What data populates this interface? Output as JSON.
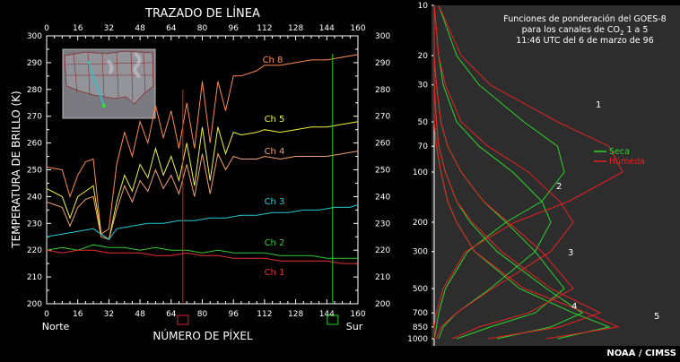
{
  "colors": {
    "ch1": "#e53030",
    "ch2": "#32c832",
    "ch3": "#22c8d2",
    "ch4": "#f0a070",
    "ch5": "#f0f03c",
    "ch8": "#ff8a50",
    "seca": "#2bd42b",
    "humeda": "#e62222",
    "cursor_red": "#e02020",
    "cursor_green": "#20d020",
    "panel": "#2d2d2d"
  },
  "chart_data": [
    {
      "type": "line",
      "title": "TRAZADO DE LÍNEA",
      "xlabel": "NÚMERO DE PÍXEL",
      "ylabel": "TEMPERATURA DE BRILLO (K)",
      "x_ticks": [
        "0",
        "16",
        "32",
        "48",
        "64",
        "80",
        "96",
        "112",
        "128",
        "144",
        "160"
      ],
      "y_ticks": [
        "300",
        "290",
        "280",
        "270",
        "260",
        "250",
        "240",
        "230",
        "220",
        "210",
        "200"
      ],
      "xlim": [
        0,
        160
      ],
      "ylim": [
        200,
        300
      ],
      "left_label": "Norte",
      "right_label": "Sur",
      "cursors": [
        {
          "x": 70,
          "color": "red"
        },
        {
          "x": 147,
          "color": "green"
        }
      ],
      "series": [
        {
          "name": "Ch 8",
          "x": [
            0,
            8,
            12,
            16,
            20,
            24,
            28,
            32,
            36,
            40,
            44,
            48,
            52,
            56,
            60,
            64,
            68,
            72,
            76,
            80,
            84,
            88,
            92,
            96,
            100,
            108,
            112,
            120,
            128,
            136,
            144,
            152,
            160
          ],
          "y": [
            251,
            250,
            240,
            248,
            253,
            254,
            226,
            228,
            252,
            264,
            255,
            268,
            260,
            274,
            262,
            272,
            258,
            275,
            258,
            283,
            260,
            283,
            272,
            285,
            285,
            287,
            289,
            289,
            290,
            291,
            291,
            292,
            293
          ]
        },
        {
          "name": "Ch 5",
          "x": [
            0,
            8,
            12,
            16,
            20,
            24,
            28,
            32,
            36,
            40,
            44,
            48,
            52,
            56,
            60,
            64,
            68,
            72,
            76,
            80,
            84,
            88,
            92,
            96,
            100,
            108,
            112,
            120,
            128,
            136,
            144,
            152,
            160
          ],
          "y": [
            243,
            240,
            232,
            240,
            242,
            244,
            226,
            224,
            238,
            248,
            242,
            252,
            247,
            258,
            248,
            255,
            246,
            260,
            244,
            266,
            246,
            266,
            256,
            264,
            263,
            264,
            265,
            264,
            265,
            266,
            266,
            267,
            268
          ]
        },
        {
          "name": "Ch 4",
          "x": [
            0,
            8,
            12,
            16,
            20,
            24,
            28,
            32,
            36,
            40,
            44,
            48,
            52,
            56,
            60,
            64,
            68,
            72,
            76,
            80,
            84,
            88,
            92,
            96,
            100,
            108,
            112,
            120,
            128,
            136,
            144,
            152,
            160
          ],
          "y": [
            238,
            236,
            229,
            236,
            239,
            240,
            225,
            224,
            235,
            244,
            238,
            246,
            242,
            250,
            243,
            248,
            241,
            252,
            240,
            256,
            241,
            256,
            250,
            255,
            254,
            254,
            255,
            254,
            255,
            255,
            255,
            256,
            257
          ]
        },
        {
          "name": "Ch 3",
          "x": [
            0,
            8,
            16,
            24,
            28,
            32,
            36,
            44,
            52,
            60,
            68,
            76,
            84,
            92,
            100,
            108,
            116,
            124,
            132,
            140,
            148,
            156,
            160
          ],
          "y": [
            225,
            226,
            227,
            228,
            226,
            224,
            228,
            229,
            230,
            230,
            231,
            231,
            232,
            232,
            233,
            233,
            234,
            234,
            235,
            235,
            236,
            236,
            237
          ]
        },
        {
          "name": "Ch 2",
          "x": [
            0,
            8,
            16,
            24,
            32,
            40,
            48,
            56,
            64,
            72,
            80,
            88,
            96,
            104,
            112,
            120,
            128,
            136,
            144,
            152,
            160
          ],
          "y": [
            220,
            221,
            220,
            222,
            221,
            221,
            220,
            221,
            220,
            220,
            219,
            220,
            219,
            219,
            219,
            218,
            218,
            218,
            217,
            217,
            217
          ]
        },
        {
          "name": "Ch 1",
          "x": [
            0,
            8,
            16,
            24,
            32,
            40,
            48,
            56,
            64,
            72,
            80,
            88,
            96,
            104,
            112,
            120,
            128,
            136,
            144,
            152,
            160
          ],
          "y": [
            220,
            219,
            220,
            220,
            219,
            219,
            219,
            218,
            218,
            219,
            218,
            218,
            217,
            217,
            217,
            216,
            216,
            216,
            216,
            215,
            215
          ]
        }
      ]
    },
    {
      "type": "line",
      "title": "Funciones de ponderación del GOES-8",
      "subtitle_line2_prefix": "para los canales de CO",
      "subtitle_line2_sub": "2",
      "subtitle_line2_suffix": " 1 a 5",
      "subtitle_line3": "11:46 UTC del 6 de marzo de 96",
      "y_ticks": [
        "10",
        "20",
        "30",
        "50",
        "70",
        "100",
        "200",
        "300",
        "500",
        "700",
        "850",
        "1000"
      ],
      "y_scale": "log",
      "ylim": [
        1000,
        10
      ],
      "legend": {
        "seca": "Seca",
        "humeda": "Húmeda"
      },
      "curve_labels": [
        "1",
        "2",
        "3",
        "4",
        "5"
      ],
      "footer": "NOAA / CIMSS",
      "series": [
        {
          "name": "Seca",
          "pressure": [
            10,
            20,
            30,
            50,
            70,
            100,
            150,
            200,
            300,
            500,
            700,
            850,
            1000
          ],
          "curves": [
            [
              0.02,
              0.1,
              0.2,
              0.4,
              0.55,
              0.58,
              0.48,
              0.32,
              0.15,
              0.05,
              0.02,
              0.01,
              0.0
            ],
            [
              0.0,
              0.02,
              0.04,
              0.1,
              0.2,
              0.35,
              0.48,
              0.52,
              0.45,
              0.25,
              0.1,
              0.04,
              0.02
            ],
            [
              0.0,
              0.0,
              0.01,
              0.03,
              0.06,
              0.12,
              0.22,
              0.32,
              0.45,
              0.58,
              0.45,
              0.25,
              0.1
            ],
            [
              0.0,
              0.0,
              0.0,
              0.01,
              0.02,
              0.05,
              0.1,
              0.16,
              0.28,
              0.5,
              0.66,
              0.52,
              0.28
            ],
            [
              0.0,
              0.0,
              0.0,
              0.0,
              0.01,
              0.03,
              0.06,
              0.1,
              0.18,
              0.38,
              0.62,
              0.78,
              0.55
            ]
          ]
        },
        {
          "name": "Húmeda",
          "pressure": [
            10,
            20,
            30,
            50,
            70,
            100,
            150,
            200,
            300,
            500,
            700,
            850,
            1000
          ],
          "curves": [
            [
              0.02,
              0.12,
              0.25,
              0.55,
              0.78,
              0.84,
              0.6,
              0.36,
              0.14,
              0.04,
              0.01,
              0.0,
              0.0
            ],
            [
              0.0,
              0.02,
              0.05,
              0.12,
              0.24,
              0.42,
              0.56,
              0.62,
              0.52,
              0.26,
              0.1,
              0.03,
              0.01
            ],
            [
              0.0,
              0.0,
              0.01,
              0.03,
              0.06,
              0.12,
              0.22,
              0.33,
              0.48,
              0.62,
              0.42,
              0.2,
              0.08
            ],
            [
              0.0,
              0.0,
              0.0,
              0.01,
              0.02,
              0.05,
              0.1,
              0.17,
              0.3,
              0.52,
              0.74,
              0.56,
              0.24
            ],
            [
              0.0,
              0.0,
              0.0,
              0.0,
              0.01,
              0.03,
              0.06,
              0.1,
              0.18,
              0.4,
              0.68,
              0.82,
              0.5
            ]
          ]
        }
      ]
    }
  ]
}
